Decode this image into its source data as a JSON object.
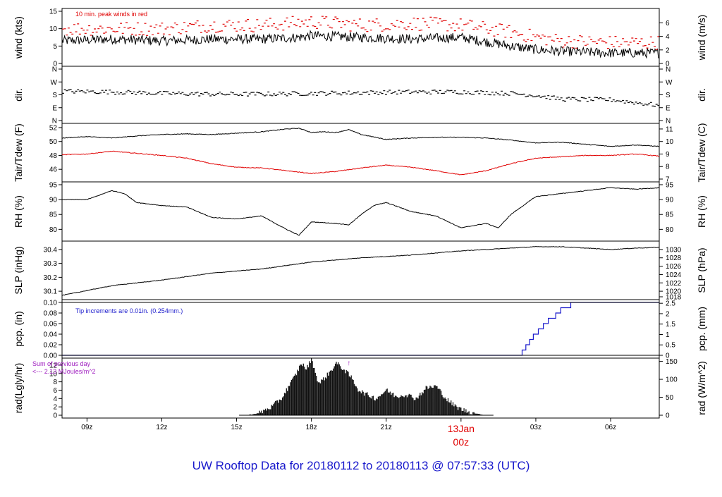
{
  "chart_data": {
    "type": "line",
    "title": "UW Rooftop Data for 20180112  to  20180113 @ 07:57:33  (UTC)",
    "title_color": "#1a1acc",
    "x_axis": {
      "unit": "hours since 2018-01-12 00z",
      "range": [
        8.0,
        31.95
      ],
      "ticks": [
        {
          "value": 9,
          "label": "09z"
        },
        {
          "value": 12,
          "label": "12z"
        },
        {
          "value": 15,
          "label": "15z"
        },
        {
          "value": 18,
          "label": "18z"
        },
        {
          "value": 21,
          "label": "21z"
        },
        {
          "value": 27,
          "label": "03z"
        },
        {
          "value": 30,
          "label": "06z"
        }
      ],
      "day_marker": {
        "value": 24,
        "line1": "13Jan",
        "line2": "00z",
        "color": "#e00000"
      }
    },
    "panels": [
      {
        "id": "wind",
        "left_label": "wind (kts)",
        "right_label": "wind (m/s)",
        "ylim": [
          0,
          15
        ],
        "left_ticks": [
          {
            "v": 0,
            "t": "0"
          },
          {
            "v": 5,
            "t": "5"
          },
          {
            "v": 10,
            "t": "10"
          },
          {
            "v": 15,
            "t": "15"
          }
        ],
        "right_ticks": [
          {
            "v": 0,
            "t": "0"
          },
          {
            "v": 3.889,
            "t": "2"
          },
          {
            "v": 7.777,
            "t": "4"
          },
          {
            "v": 11.666,
            "t": "6"
          }
        ],
        "annotation": {
          "text": "10 min. peak winds in red",
          "color": "#e00000"
        },
        "series": [
          {
            "name": "wind speed",
            "style": "line",
            "color": "#000000",
            "noise": 1.4,
            "x": [
              8,
              10,
              12,
              14,
              16,
              17.5,
              18,
              20,
              22,
              24,
              26,
              27,
              28,
              30,
              31.95
            ],
            "y": [
              6.5,
              7,
              6.5,
              7,
              7,
              7.5,
              8,
              7.5,
              7,
              7.5,
              5,
              4,
              3.5,
              3,
              3
            ]
          },
          {
            "name": "10 min. peak winds",
            "style": "dash",
            "color": "#e00000",
            "noise": 2.0,
            "x": [
              8,
              10,
              12,
              14,
              16,
              18,
              20,
              22,
              24,
              26,
              27,
              28,
              30,
              31.95
            ],
            "y": [
              10,
              10,
              10,
              11,
              11,
              12,
              11,
              11.5,
              11,
              9,
              7.5,
              6.5,
              6,
              6
            ]
          }
        ]
      },
      {
        "id": "dir",
        "left_label": "dir.",
        "right_label": "dir.",
        "ylim": [
          0,
          360
        ],
        "left_ticks": [
          {
            "v": 0,
            "t": "N"
          },
          {
            "v": 90,
            "t": "E"
          },
          {
            "v": 180,
            "t": "S"
          },
          {
            "v": 270,
            "t": "W"
          },
          {
            "v": 360,
            "t": "N"
          }
        ],
        "right_ticks": [
          {
            "v": 0,
            "t": "N"
          },
          {
            "v": 90,
            "t": "E"
          },
          {
            "v": 180,
            "t": "S"
          },
          {
            "v": 270,
            "t": "W"
          },
          {
            "v": 360,
            "t": "N"
          }
        ],
        "series": [
          {
            "name": "wind direction",
            "style": "dash",
            "color": "#000000",
            "noise": 15,
            "x": [
              8,
              10,
              12,
              14,
              16,
              18,
              20,
              22,
              24,
              26,
              27,
              28,
              30,
              31.95
            ],
            "y": [
              205,
              200,
              190,
              185,
              185,
              190,
              195,
              200,
              200,
              190,
              175,
              150,
              145,
              105
            ]
          }
        ]
      },
      {
        "id": "temp",
        "left_label": "Tair/Tdew (F)",
        "right_label": "Tair/Tdew (C)",
        "ylim": [
          44.6,
          52.2
        ],
        "left_ticks": [
          {
            "v": 46,
            "t": "46"
          },
          {
            "v": 48,
            "t": "48"
          },
          {
            "v": 50,
            "t": "50"
          },
          {
            "v": 52,
            "t": "52"
          }
        ],
        "right_ticks": [
          {
            "v": 44.6,
            "t": "7"
          },
          {
            "v": 46.4,
            "t": "8"
          },
          {
            "v": 48.2,
            "t": "9"
          },
          {
            "v": 50,
            "t": "10"
          },
          {
            "v": 51.8,
            "t": "11"
          }
        ],
        "series": [
          {
            "name": "Tair",
            "style": "line",
            "color": "#000000",
            "noise": 0.05,
            "x": [
              8,
              9,
              10,
              11,
              12,
              13,
              14,
              15,
              16,
              17,
              17.5,
              18,
              18.5,
              19,
              19.5,
              20,
              21,
              22,
              23,
              24,
              25,
              26,
              27,
              28,
              29,
              30,
              31,
              31.95
            ],
            "y": [
              50.5,
              50.7,
              50.5,
              50.8,
              51.0,
              51.1,
              51.0,
              51.2,
              51.4,
              51.8,
              51.9,
              51.3,
              51.4,
              51.3,
              51.7,
              51.0,
              50.3,
              50.5,
              50.6,
              50.6,
              50.5,
              50.2,
              49.8,
              49.9,
              49.6,
              49.3,
              49.5,
              49.3
            ]
          },
          {
            "name": "Tdew",
            "style": "line",
            "color": "#e00000",
            "noise": 0.05,
            "x": [
              8,
              9,
              10,
              11,
              12,
              13,
              14,
              15,
              16,
              17,
              18,
              19,
              20,
              21,
              22,
              23,
              24,
              25,
              26,
              27,
              28,
              29,
              30,
              31,
              31.95
            ],
            "y": [
              48.1,
              48.2,
              48.6,
              48.3,
              48.0,
              47.6,
              46.8,
              46.3,
              46.2,
              45.8,
              45.4,
              45.7,
              46.2,
              46.6,
              46.3,
              45.8,
              45.2,
              45.8,
              46.8,
              47.6,
              47.8,
              48.0,
              48.0,
              48.2,
              47.9
            ]
          }
        ]
      },
      {
        "id": "rh",
        "left_label": "RH (%)",
        "right_label": "RH (%)",
        "ylim": [
          77,
          95
        ],
        "left_ticks": [
          {
            "v": 80,
            "t": "80"
          },
          {
            "v": 85,
            "t": "85"
          },
          {
            "v": 90,
            "t": "90"
          },
          {
            "v": 95,
            "t": "95"
          }
        ],
        "right_ticks": [
          {
            "v": 80,
            "t": "80"
          },
          {
            "v": 85,
            "t": "85"
          },
          {
            "v": 90,
            "t": "90"
          },
          {
            "v": 95,
            "t": "95"
          }
        ],
        "series": [
          {
            "name": "relative humidity",
            "style": "line",
            "color": "#000000",
            "noise": 0.1,
            "x": [
              8,
              9,
              10,
              10.5,
              11,
              12,
              13,
              14,
              15,
              16,
              17,
              17.5,
              18,
              19,
              19.5,
              20,
              20.5,
              21,
              22,
              23,
              24,
              25,
              25.5,
              26,
              27,
              28,
              29,
              30,
              31,
              31.95
            ],
            "y": [
              90,
              90,
              93,
              92,
              89,
              88,
              87.5,
              84,
              83.5,
              84.5,
              80,
              78,
              82.5,
              82,
              81.5,
              85,
              88,
              89,
              86,
              84.5,
              80.5,
              82,
              80.5,
              85,
              91,
              92,
              93,
              94,
              93.5,
              94
            ]
          }
        ]
      },
      {
        "id": "slp",
        "left_label": "SLP (inHg)",
        "right_label": "SLP (hPa)",
        "ylim": [
          30.06,
          30.44
        ],
        "left_ticks": [
          {
            "v": 30.1,
            "t": "30.1"
          },
          {
            "v": 30.2,
            "t": "30.2"
          },
          {
            "v": 30.3,
            "t": "30.3"
          },
          {
            "v": 30.4,
            "t": "30.4"
          }
        ],
        "right_ticks": [
          {
            "v": 30.06,
            "t": "1018"
          },
          {
            "v": 30.1,
            "t": "1020"
          },
          {
            "v": 30.16,
            "t": "1022"
          },
          {
            "v": 30.22,
            "t": "1024"
          },
          {
            "v": 30.28,
            "t": "1026"
          },
          {
            "v": 30.34,
            "t": "1028"
          },
          {
            "v": 30.4,
            "t": "1030"
          }
        ],
        "series": [
          {
            "name": "sea level pressure",
            "style": "line",
            "color": "#000000",
            "noise": 0.002,
            "x": [
              8,
              10,
              12,
              14,
              16,
              18,
              20,
              22,
              24,
              26,
              27,
              28,
              29,
              30,
              31,
              31.95
            ],
            "y": [
              30.07,
              30.14,
              30.18,
              30.23,
              30.26,
              30.31,
              30.34,
              30.36,
              30.39,
              30.41,
              30.42,
              30.42,
              30.41,
              30.4,
              30.41,
              30.415
            ]
          }
        ]
      },
      {
        "id": "pcp",
        "left_label": "pcp. (in)",
        "right_label": "pcp. (mm)",
        "ylim": [
          0,
          0.1
        ],
        "left_ticks": [
          {
            "v": 0,
            "t": "0.00"
          },
          {
            "v": 0.02,
            "t": "0.02"
          },
          {
            "v": 0.04,
            "t": "0.04"
          },
          {
            "v": 0.06,
            "t": "0.06"
          },
          {
            "v": 0.08,
            "t": "0.08"
          },
          {
            "v": 0.1,
            "t": "0.10"
          }
        ],
        "right_ticks": [
          {
            "v": 0,
            "t": "0"
          },
          {
            "v": 0.01969,
            "t": "0.5"
          },
          {
            "v": 0.03937,
            "t": "1"
          },
          {
            "v": 0.05906,
            "t": "1.5"
          },
          {
            "v": 0.07874,
            "t": "2"
          },
          {
            "v": 0.09843,
            "t": "2.5"
          }
        ],
        "annotation": {
          "text": "Tip increments are 0.01in. (0.254mm.)",
          "color": "#1a1acc"
        },
        "series": [
          {
            "name": "accumulated precipitation",
            "style": "step",
            "color": "#1a1acc",
            "x": [
              8,
              26.3,
              26.45,
              26.6,
              26.75,
              26.9,
              27.1,
              27.3,
              27.5,
              27.8,
              28.0,
              28.4,
              31.95
            ],
            "y": [
              0,
              0,
              0.01,
              0.02,
              0.03,
              0.04,
              0.05,
              0.06,
              0.07,
              0.08,
              0.09,
              0.1,
              0.1
            ]
          }
        ]
      },
      {
        "id": "rad",
        "left_label": "rad(Lgly/hr)",
        "right_label": "rad (W/m^2)",
        "ylim": [
          0,
          13
        ],
        "left_ticks": [
          {
            "v": 0,
            "t": "0"
          },
          {
            "v": 2,
            "t": "2"
          },
          {
            "v": 4,
            "t": "4"
          },
          {
            "v": 6,
            "t": "6"
          },
          {
            "v": 8,
            "t": "8"
          },
          {
            "v": 10,
            "t": "10"
          },
          {
            "v": 12,
            "t": "12"
          }
        ],
        "right_ticks": [
          {
            "v": 0,
            "t": "0"
          },
          {
            "v": 4.3,
            "t": "50"
          },
          {
            "v": 8.6,
            "t": "100"
          },
          {
            "v": 12.9,
            "t": "150"
          }
        ],
        "annotation": {
          "line1": "Sum of previous day",
          "line2": "<--- 2.13 MJoules/m^2",
          "marker": "↑",
          "color": "#a020c0"
        },
        "series": [
          {
            "name": "solar radiation",
            "style": "bars",
            "color": "#111111",
            "noise": 0.6,
            "x": [
              15.4,
              15.9,
              16.4,
              16.8,
              17.1,
              17.4,
              17.6,
              17.8,
              18.0,
              18.3,
              18.7,
              19.0,
              19.3,
              19.6,
              19.9,
              20.2,
              20.6,
              21.0,
              21.4,
              21.8,
              22.2,
              22.6,
              23.0,
              23.4,
              23.8,
              24.2,
              24.6,
              25.0
            ],
            "y": [
              0,
              0.5,
              2,
              4,
              7,
              10,
              12.5,
              11,
              13.5,
              7.5,
              10,
              12.5,
              11,
              9,
              6,
              5,
              4,
              6,
              4.5,
              5,
              4,
              6.5,
              7,
              4,
              2,
              1,
              0.4,
              0
            ]
          }
        ]
      }
    ]
  }
}
